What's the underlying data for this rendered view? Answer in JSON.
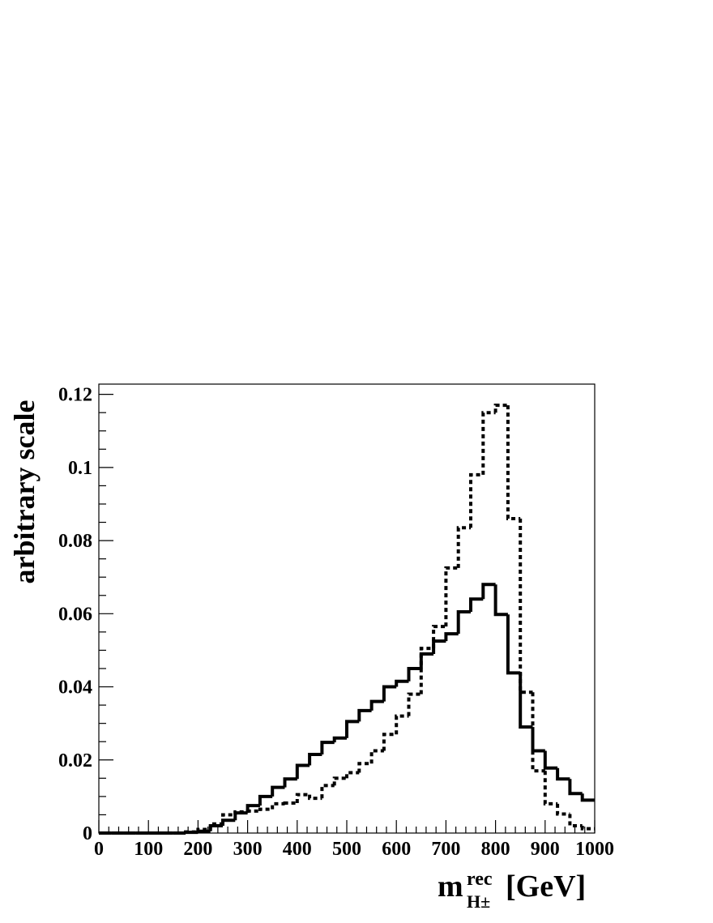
{
  "chart_data": {
    "type": "histogram",
    "y_label": "arbitrary scale",
    "x_label": {
      "base": "m",
      "sup": "rec",
      "sub": "H±",
      "unit": "[GeV]"
    },
    "bins": [
      0,
      25,
      50,
      75,
      100,
      125,
      150,
      175,
      200,
      225,
      250,
      275,
      300,
      325,
      350,
      375,
      400,
      425,
      450,
      475,
      500,
      525,
      550,
      575,
      600,
      625,
      650,
      675,
      700,
      725,
      750,
      775,
      800,
      825,
      850,
      875,
      900,
      925,
      950,
      975,
      1000
    ],
    "series": [
      {
        "color": "#000000",
        "style": "solid",
        "values": [
          0,
          0,
          0,
          0,
          0,
          0,
          0,
          0.0002,
          0.0005,
          0.002,
          0.0035,
          0.0055,
          0.0075,
          0.01,
          0.0125,
          0.0148,
          0.0185,
          0.0215,
          0.0248,
          0.026,
          0.0305,
          0.0335,
          0.036,
          0.04,
          0.0415,
          0.045,
          0.049,
          0.0525,
          0.0545,
          0.0605,
          0.064,
          0.068,
          0.0598,
          0.0438,
          0.029,
          0.0225,
          0.0178,
          0.0148,
          0.0108,
          0.009
        ]
      },
      {
        "color": "#000000",
        "style": "dotted",
        "values": [
          0,
          0,
          0,
          0,
          0,
          0,
          0,
          0.0003,
          0.001,
          0.0025,
          0.005,
          0.0058,
          0.006,
          0.0065,
          0.008,
          0.0082,
          0.0105,
          0.0095,
          0.013,
          0.015,
          0.0165,
          0.019,
          0.0225,
          0.027,
          0.032,
          0.038,
          0.0505,
          0.0565,
          0.0725,
          0.0835,
          0.098,
          0.115,
          0.117,
          0.086,
          0.0385,
          0.017,
          0.008,
          0.0052,
          0.002,
          0.0012
        ]
      }
    ],
    "xlim": [
      0,
      1000
    ],
    "ylim": [
      0,
      0.1228
    ],
    "xticks": [
      0,
      100,
      200,
      300,
      400,
      500,
      600,
      700,
      800,
      900,
      1000
    ],
    "yticks": [
      0,
      0.02,
      0.04,
      0.06,
      0.08,
      0.1,
      0.12
    ]
  }
}
